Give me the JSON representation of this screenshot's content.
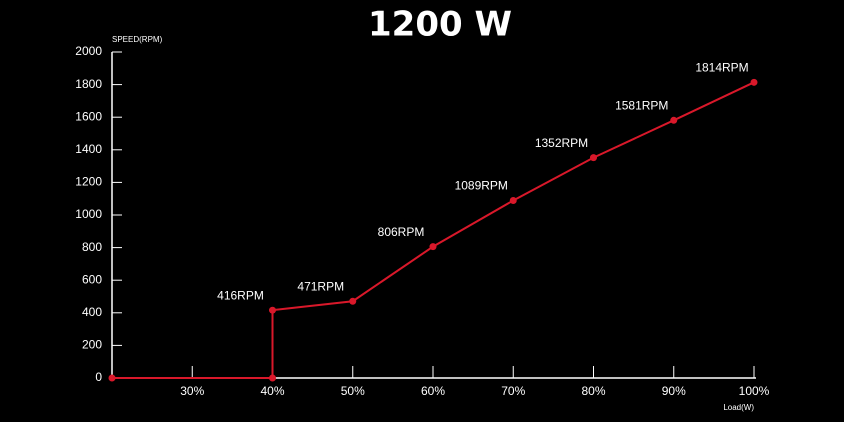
{
  "chart_data": {
    "type": "line",
    "title": "1200 W",
    "y_label": "SPEED(RPM)",
    "x_label": "Load(W)",
    "x": [
      20,
      40,
      40,
      50,
      60,
      70,
      80,
      90,
      100
    ],
    "series": [
      {
        "name": "1200 W",
        "color": "#d9182a",
        "values": [
          0,
          0,
          416,
          471,
          806,
          1089,
          1352,
          1581,
          1814
        ],
        "value_labels": [
          null,
          null,
          "416RPM",
          "471RPM",
          "806RPM",
          "1089RPM",
          "1352RPM",
          "1581RPM",
          "1814RPM"
        ]
      }
    ],
    "xlim": [
      20,
      100
    ],
    "xticks": [
      {
        "value": 30,
        "label": "30%"
      },
      {
        "value": 40,
        "label": "40%"
      },
      {
        "value": 50,
        "label": "50%"
      },
      {
        "value": 60,
        "label": "60%"
      },
      {
        "value": 70,
        "label": "70%"
      },
      {
        "value": 80,
        "label": "80%"
      },
      {
        "value": 90,
        "label": "90%"
      },
      {
        "value": 100,
        "label": "100%"
      }
    ],
    "ylim": [
      0,
      2000
    ],
    "yticks": [
      0,
      200,
      400,
      600,
      800,
      1000,
      1200,
      1400,
      1600,
      1800,
      2000
    ]
  }
}
